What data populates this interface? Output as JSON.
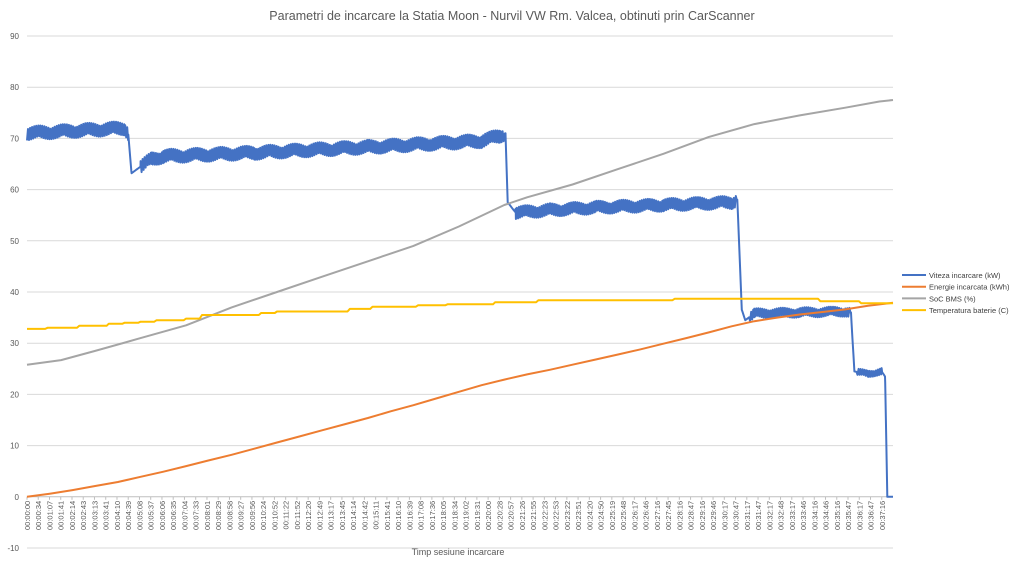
{
  "chart_data": {
    "type": "line",
    "title": "Parametri de incarcare la Statia Moon - Nurvil VW Rm. Valcea, obtinuti prin CarScanner",
    "xlabel": "Timp sesiune incarcare",
    "ylabel": "",
    "ylim": [
      -10,
      90
    ],
    "yticks": [
      -10,
      0,
      10,
      20,
      30,
      40,
      50,
      60,
      70,
      80,
      90
    ],
    "grid": true,
    "legend_position": "right",
    "x_duration_minutes": 38.1,
    "xticks": [
      "00:00:00",
      "00:00:34",
      "00:01:07",
      "00:01:41",
      "00:02:14",
      "00:02:43",
      "00:03:13",
      "00:03:41",
      "00:04:10",
      "00:04:39",
      "00:05:08",
      "00:05:37",
      "00:06:06",
      "00:06:35",
      "00:07:04",
      "00:07:33",
      "00:08:01",
      "00:08:29",
      "00:08:58",
      "00:09:27",
      "00:09:56",
      "00:10:24",
      "00:10:52",
      "00:11:22",
      "00:11:52",
      "00:12:20",
      "00:12:49",
      "00:13:17",
      "00:13:45",
      "00:14:14",
      "00:14:42",
      "00:15:11",
      "00:15:41",
      "00:16:10",
      "00:16:39",
      "00:17:08",
      "00:17:36",
      "00:18:05",
      "00:18:34",
      "00:19:02",
      "00:19:31",
      "00:20:00",
      "00:20:28",
      "00:20:57",
      "00:21:26",
      "00:21:55",
      "00:22:23",
      "00:22:53",
      "00:23:22",
      "00:23:51",
      "00:24:20",
      "00:24:50",
      "00:25:19",
      "00:25:48",
      "00:26:17",
      "00:26:46",
      "00:27:16",
      "00:27:45",
      "00:28:16",
      "00:28:47",
      "00:29:16",
      "00:29:46",
      "00:30:17",
      "00:30:47",
      "00:31:17",
      "00:31:47",
      "00:32:17",
      "00:32:48",
      "00:33:17",
      "00:33:46",
      "00:34:16",
      "00:34:46",
      "00:35:16",
      "00:35:47",
      "00:36:17",
      "00:36:47",
      "00:37:16"
    ],
    "series": [
      {
        "name": "Viteza incarcare (kW)",
        "color": "#4472C4",
        "points": [
          [
            0,
            71
          ],
          [
            4.3,
            72
          ],
          [
            4.45,
            71
          ],
          [
            4.6,
            63.2
          ],
          [
            5.0,
            64.5
          ],
          [
            5.5,
            66
          ],
          [
            6,
            66.5
          ],
          [
            10,
            67.2
          ],
          [
            15,
            68.3
          ],
          [
            20,
            69.5
          ],
          [
            20.8,
            70.5
          ],
          [
            21.05,
            71
          ],
          [
            21.15,
            57.5
          ],
          [
            21.5,
            55.5
          ],
          [
            23,
            56
          ],
          [
            25,
            56.5
          ],
          [
            28,
            57
          ],
          [
            31,
            57.5
          ],
          [
            31.25,
            58
          ],
          [
            31.45,
            36.5
          ],
          [
            31.6,
            34.5
          ],
          [
            32,
            35.8
          ],
          [
            34,
            36
          ],
          [
            36,
            36.2
          ],
          [
            36.25,
            36
          ],
          [
            36.4,
            24.5
          ],
          [
            37,
            24
          ],
          [
            37.6,
            24.5
          ],
          [
            37.75,
            23.5
          ],
          [
            37.85,
            0
          ],
          [
            38.1,
            0
          ]
        ],
        "noise": [
          {
            "from": 0,
            "to": 4.45,
            "amp": 1.4
          },
          {
            "from": 5.0,
            "to": 21.0,
            "amp": 1.4
          },
          {
            "from": 21.5,
            "to": 31.2,
            "amp": 1.3
          },
          {
            "from": 31.8,
            "to": 36.2,
            "amp": 1.0
          },
          {
            "from": 36.5,
            "to": 37.6,
            "amp": 0.7
          }
        ]
      },
      {
        "name": "Energie incarcata (kWh)",
        "color": "#ED7D31",
        "points": [
          [
            0,
            0
          ],
          [
            1,
            0.6
          ],
          [
            2,
            1.3
          ],
          [
            3,
            2.1
          ],
          [
            4,
            2.9
          ],
          [
            5,
            3.9
          ],
          [
            6,
            4.9
          ],
          [
            7,
            6.0
          ],
          [
            8,
            7.1
          ],
          [
            9,
            8.2
          ],
          [
            10,
            9.4
          ],
          [
            11,
            10.6
          ],
          [
            12,
            11.8
          ],
          [
            13,
            13.0
          ],
          [
            14,
            14.2
          ],
          [
            15,
            15.4
          ],
          [
            16,
            16.7
          ],
          [
            17,
            17.9
          ],
          [
            18,
            19.2
          ],
          [
            19,
            20.5
          ],
          [
            20,
            21.8
          ],
          [
            21,
            22.9
          ],
          [
            22,
            23.9
          ],
          [
            23,
            24.8
          ],
          [
            24,
            25.8
          ],
          [
            25,
            26.8
          ],
          [
            26,
            27.8
          ],
          [
            27,
            28.8
          ],
          [
            28,
            29.9
          ],
          [
            29,
            31.0
          ],
          [
            30,
            32.1
          ],
          [
            31,
            33.3
          ],
          [
            32,
            34.3
          ],
          [
            33,
            35.0
          ],
          [
            34,
            35.6
          ],
          [
            35,
            36.1
          ],
          [
            36,
            36.6
          ],
          [
            37,
            37.3
          ],
          [
            38.1,
            37.9
          ]
        ]
      },
      {
        "name": "SoC BMS (%)",
        "color": "#A5A5A5",
        "points": [
          [
            0,
            25.8
          ],
          [
            1.5,
            26.7
          ],
          [
            3,
            28.5
          ],
          [
            5,
            31
          ],
          [
            7,
            33.5
          ],
          [
            9,
            37
          ],
          [
            11,
            40
          ],
          [
            13,
            43
          ],
          [
            15,
            46
          ],
          [
            17,
            49
          ],
          [
            19,
            52.8
          ],
          [
            21,
            57
          ],
          [
            22,
            58.5
          ],
          [
            24,
            61
          ],
          [
            26,
            64
          ],
          [
            28,
            67
          ],
          [
            30,
            70.3
          ],
          [
            32,
            72.8
          ],
          [
            34,
            74.5
          ],
          [
            36,
            76
          ],
          [
            37.5,
            77.2
          ],
          [
            38.1,
            77.5
          ]
        ]
      },
      {
        "name": "Temperatura baterie (C)",
        "color": "#FFC000",
        "points": [
          [
            0,
            32.8
          ],
          [
            0.8,
            32.8
          ],
          [
            0.9,
            33
          ],
          [
            2.2,
            33
          ],
          [
            2.3,
            33.4
          ],
          [
            3.5,
            33.4
          ],
          [
            3.6,
            33.8
          ],
          [
            4.2,
            33.8
          ],
          [
            4.3,
            34
          ],
          [
            4.9,
            34
          ],
          [
            5.0,
            34.2
          ],
          [
            5.6,
            34.2
          ],
          [
            5.7,
            34.5
          ],
          [
            6.9,
            34.5
          ],
          [
            7.0,
            34.8
          ],
          [
            7.6,
            34.8
          ],
          [
            7.7,
            35.5
          ],
          [
            10.2,
            35.5
          ],
          [
            10.3,
            35.9
          ],
          [
            10.9,
            35.9
          ],
          [
            11.0,
            36.2
          ],
          [
            14.1,
            36.2
          ],
          [
            14.2,
            36.7
          ],
          [
            15.1,
            36.7
          ],
          [
            15.2,
            37.1
          ],
          [
            17.1,
            37.1
          ],
          [
            17.2,
            37.4
          ],
          [
            18.4,
            37.4
          ],
          [
            18.5,
            37.6
          ],
          [
            20.5,
            37.6
          ],
          [
            20.6,
            38
          ],
          [
            22.4,
            38
          ],
          [
            22.5,
            38.4
          ],
          [
            28.4,
            38.4
          ],
          [
            28.5,
            38.7
          ],
          [
            34.8,
            38.7
          ],
          [
            34.9,
            38.2
          ],
          [
            36.6,
            38.2
          ],
          [
            36.7,
            37.8
          ],
          [
            38.1,
            37.8
          ]
        ]
      }
    ]
  }
}
